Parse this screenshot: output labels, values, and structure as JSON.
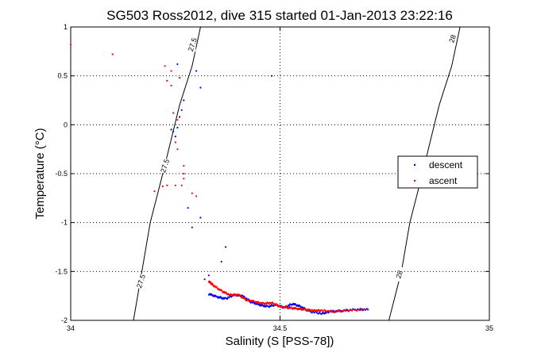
{
  "chart_data": {
    "type": "scatter",
    "title": "SG503 Ross2012, dive 315 started 01-Jan-2013 23:22:16",
    "xlabel": "Salinity (S [PSS-78])",
    "ylabel": "Temperature (°C)",
    "xlim": [
      34,
      35
    ],
    "ylim": [
      -2,
      1
    ],
    "xticks": [
      {
        "value": 34,
        "label": "34"
      },
      {
        "value": 34.5,
        "label": "34.5"
      },
      {
        "value": 35,
        "label": "35"
      }
    ],
    "yticks": [
      {
        "value": -2,
        "label": "-2"
      },
      {
        "value": -1.5,
        "label": "-1.5"
      },
      {
        "value": -1,
        "label": "-1"
      },
      {
        "value": -0.5,
        "label": "-0.5"
      },
      {
        "value": 0,
        "label": "0"
      },
      {
        "value": 0.5,
        "label": "0.5"
      },
      {
        "value": 1,
        "label": "1"
      }
    ],
    "grid": "dotted",
    "legend_placement": "right",
    "contours": [
      {
        "label": "27.5",
        "points": [
          [
            34.15,
            -2.0
          ],
          [
            34.17,
            -1.5
          ],
          [
            34.19,
            -1.0
          ],
          [
            34.22,
            -0.5
          ],
          [
            34.24,
            -0.15
          ],
          [
            34.26,
            0.2
          ],
          [
            34.29,
            0.6
          ],
          [
            34.31,
            1.0
          ]
        ],
        "label_positions": [
          [
            34.168,
            -1.6
          ],
          [
            34.225,
            -0.42
          ],
          [
            34.291,
            0.82
          ]
        ]
      },
      {
        "label": "28",
        "points": [
          [
            34.76,
            -2.0
          ],
          [
            34.79,
            -1.5
          ],
          [
            34.81,
            -1.0
          ],
          [
            34.84,
            -0.5
          ],
          [
            34.86,
            -0.15
          ],
          [
            34.88,
            0.2
          ],
          [
            34.91,
            0.6
          ],
          [
            34.93,
            1.0
          ]
        ],
        "label_positions": [
          [
            34.785,
            -1.53
          ],
          [
            34.912,
            0.88
          ]
        ]
      }
    ],
    "series": [
      {
        "name": "descent",
        "color": "#0000ff",
        "path": [
          [
            34.33,
            -1.73
          ],
          [
            34.35,
            -1.76
          ],
          [
            34.37,
            -1.78
          ],
          [
            34.39,
            -1.74
          ],
          [
            34.41,
            -1.75
          ],
          [
            34.43,
            -1.81
          ],
          [
            34.45,
            -1.84
          ],
          [
            34.47,
            -1.86
          ],
          [
            34.49,
            -1.84
          ],
          [
            34.51,
            -1.87
          ],
          [
            34.53,
            -1.83
          ],
          [
            34.55,
            -1.86
          ],
          [
            34.57,
            -1.91
          ],
          [
            34.6,
            -1.93
          ],
          [
            34.62,
            -1.91
          ],
          [
            34.65,
            -1.9
          ],
          [
            34.68,
            -1.89
          ],
          [
            34.71,
            -1.89
          ]
        ],
        "points": [
          [
            34.24,
            -0.05
          ],
          [
            34.245,
            -0.07
          ],
          [
            34.25,
            -0.12
          ],
          [
            34.255,
            -0.03
          ],
          [
            34.26,
            0.08
          ],
          [
            34.265,
            0.15
          ],
          [
            34.27,
            0.25
          ],
          [
            34.255,
            0.62
          ],
          [
            34.3,
            0.55
          ],
          [
            34.31,
            0.38
          ],
          [
            34.37,
            -1.25
          ],
          [
            34.36,
            -1.4
          ],
          [
            34.33,
            -1.54
          ],
          [
            34.32,
            -1.58
          ],
          [
            34.31,
            -0.95
          ],
          [
            34.29,
            -1.05
          ],
          [
            34.28,
            -0.85
          ],
          [
            34.48,
            0.5
          ]
        ]
      },
      {
        "name": "ascent",
        "color": "#ff0000",
        "path": [
          [
            34.33,
            -1.6
          ],
          [
            34.34,
            -1.64
          ],
          [
            34.36,
            -1.7
          ],
          [
            34.38,
            -1.74
          ],
          [
            34.4,
            -1.74
          ],
          [
            34.42,
            -1.79
          ],
          [
            34.44,
            -1.81
          ],
          [
            34.46,
            -1.83
          ],
          [
            34.48,
            -1.82
          ],
          [
            34.5,
            -1.86
          ],
          [
            34.52,
            -1.87
          ],
          [
            34.54,
            -1.88
          ],
          [
            34.56,
            -1.89
          ],
          [
            34.58,
            -1.9
          ],
          [
            34.6,
            -1.9
          ],
          [
            34.63,
            -1.91
          ],
          [
            34.66,
            -1.9
          ],
          [
            34.7,
            -1.89
          ]
        ],
        "points": [
          [
            34.0,
            0.82
          ],
          [
            34.1,
            0.72
          ],
          [
            34.225,
            0.6
          ],
          [
            34.23,
            0.45
          ],
          [
            34.24,
            0.4
          ],
          [
            34.245,
            0.12
          ],
          [
            34.255,
            0.05
          ],
          [
            34.25,
            -0.18
          ],
          [
            34.255,
            -0.25
          ],
          [
            34.27,
            -0.42
          ],
          [
            34.27,
            -0.5
          ],
          [
            34.27,
            -0.55
          ],
          [
            34.265,
            -0.62
          ],
          [
            34.25,
            -0.62
          ],
          [
            34.23,
            -0.62
          ],
          [
            34.22,
            -0.63
          ],
          [
            34.2,
            -0.68
          ],
          [
            34.29,
            -0.7
          ],
          [
            34.3,
            -0.73
          ],
          [
            34.24,
            0.55
          ],
          [
            34.26,
            0.48
          ]
        ]
      }
    ]
  }
}
